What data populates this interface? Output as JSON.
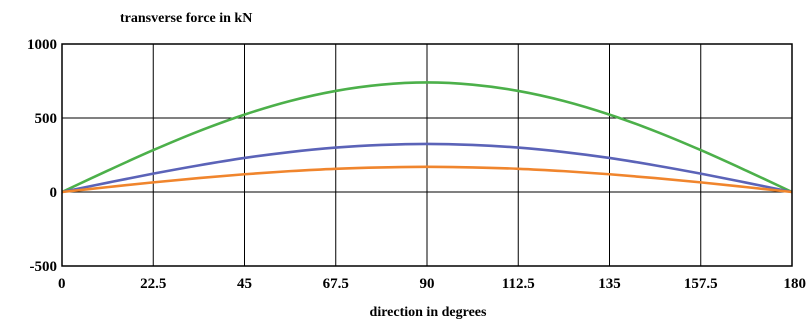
{
  "chart_data": {
    "type": "line",
    "title": "transverse force in kN",
    "xlabel": "direction in degrees",
    "ylabel": "",
    "xlim": [
      0,
      180
    ],
    "ylim": [
      -500,
      1000
    ],
    "x_ticks": [
      "0",
      "22.5",
      "45",
      "67.5",
      "90",
      "112.5",
      "135",
      "157.5",
      "180"
    ],
    "y_ticks": [
      "-500",
      "0",
      "500",
      "1000"
    ],
    "grid": true,
    "legend": "none",
    "x": [
      0,
      11.25,
      22.5,
      33.75,
      45,
      56.25,
      67.5,
      78.75,
      90,
      101.25,
      112.5,
      123.75,
      135,
      146.25,
      157.5,
      168.75,
      180
    ],
    "series": [
      {
        "color": "#4cb04a",
        "values": [
          0,
          144,
          283,
          411,
          523,
          615,
          683,
          725,
          740,
          725,
          683,
          615,
          523,
          411,
          283,
          144,
          0
        ]
      },
      {
        "color": "#5b63b8",
        "values": [
          0,
          63,
          124,
          180,
          230,
          270,
          300,
          318,
          325,
          318,
          300,
          270,
          230,
          180,
          124,
          63,
          0
        ]
      },
      {
        "color": "#f0852d",
        "values": [
          0,
          33,
          65,
          94,
          120,
          141,
          157,
          166,
          170,
          166,
          157,
          141,
          120,
          94,
          65,
          33,
          0
        ]
      }
    ]
  }
}
